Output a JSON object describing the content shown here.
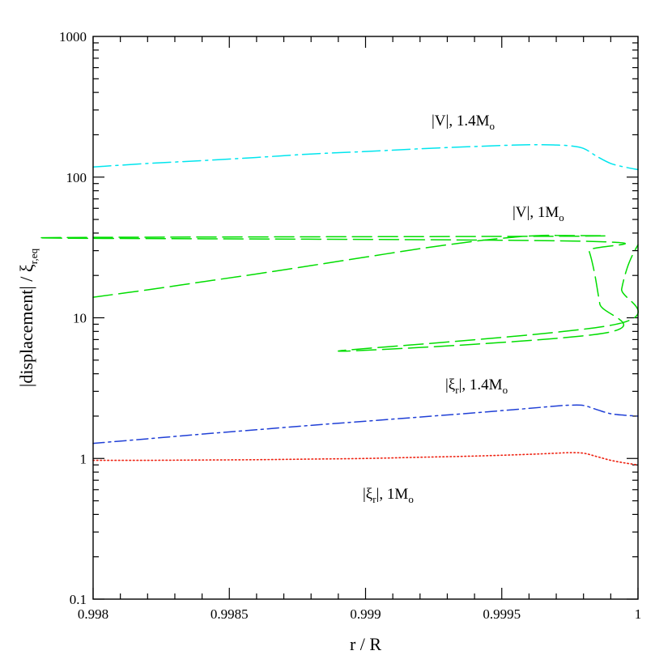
{
  "chart_data": {
    "type": "line",
    "title": "",
    "xlabel": "r / R",
    "ylabel": "|displacement| / ξ",
    "ylabel_subscript": "r,eq",
    "xlim": [
      0.998,
      1.0
    ],
    "ylim": [
      0.1,
      1000
    ],
    "yscale": "log",
    "grid": false,
    "x_ticks": [
      0.998,
      0.9985,
      0.999,
      0.9995,
      1.0
    ],
    "x_tick_labels": [
      "0.998",
      "0.9985",
      "0.999",
      "0.9995",
      "1"
    ],
    "y_ticks": [
      0.1,
      1,
      10,
      100,
      1000
    ],
    "y_tick_labels": [
      "0.1",
      "1",
      "10",
      "100",
      "1000"
    ],
    "series": [
      {
        "name": "|V|, 1.4Mo",
        "color": "#00e5ee",
        "style": "dash-dot-long",
        "x": [
          0.998,
          0.9982,
          0.9984,
          0.9986,
          0.9988,
          0.999,
          0.9992,
          0.9994,
          0.99955,
          0.99965,
          0.9997,
          0.99975,
          0.9998,
          0.99985,
          0.9999,
          0.99995,
          1.0
        ],
        "y": [
          118,
          125,
          131,
          138,
          146,
          152,
          159,
          165,
          169,
          170,
          169,
          167,
          160,
          140,
          125,
          118,
          113
        ]
      },
      {
        "name": "|V|, 1Mo",
        "color": "#00dd00",
        "style": "long-dash",
        "x": [
          0.998,
          0.9982,
          0.9984,
          0.9986,
          0.9988,
          0.999,
          0.9992,
          0.9994,
          0.99955,
          0.99965,
          0.9997,
          0.99975,
          0.9978,
          0.9998,
          0.99982,
          0.99984,
          0.99986,
          0.99988,
          0.9989,
          0.99992,
          0.99994,
          0.99996,
          0.99998,
          1.0
        ],
        "y": [
          14,
          15.8,
          18,
          20.5,
          23.5,
          27,
          31,
          35,
          37.5,
          38.5,
          38.5,
          38,
          37,
          35,
          30,
          21,
          12.5,
          7.8,
          5.8,
          9,
          16,
          22.5,
          28,
          33
        ]
      },
      {
        "name": "|ξ_r|, 1.4Mo",
        "color": "#1f3fd6",
        "style": "dash-dot",
        "x": [
          0.998,
          0.9982,
          0.9984,
          0.9986,
          0.9988,
          0.999,
          0.9992,
          0.9994,
          0.9996,
          0.9997,
          0.99975,
          0.9998,
          0.99985,
          0.9999,
          0.99995,
          1.0
        ],
        "y": [
          1.28,
          1.38,
          1.49,
          1.6,
          1.72,
          1.84,
          1.97,
          2.11,
          2.27,
          2.36,
          2.39,
          2.38,
          2.22,
          2.08,
          2.03,
          2.0
        ]
      },
      {
        "name": "|ξ_r|, 1Mo",
        "color": "#ee2211",
        "style": "dotted",
        "x": [
          0.998,
          0.9982,
          0.9984,
          0.9986,
          0.9988,
          0.999,
          0.9992,
          0.9994,
          0.9996,
          0.9997,
          0.99975,
          0.9998,
          0.99985,
          0.9999,
          0.99995,
          1.0
        ],
        "y": [
          0.97,
          0.97,
          0.975,
          0.98,
          0.99,
          1.0,
          1.02,
          1.04,
          1.07,
          1.09,
          1.1,
          1.09,
          1.03,
          0.97,
          0.93,
          0.9
        ]
      }
    ],
    "annotations": [
      {
        "name": "label-v-14",
        "text": "|V|,  1.4M",
        "subscript": "o"
      },
      {
        "name": "label-v-10",
        "text": "|V|,  1M",
        "subscript": "o"
      },
      {
        "name": "label-xi-14",
        "text_pre": "|ξ",
        "text_sub1": "r",
        "text_post": "|,  1.4M",
        "subscript": "o"
      },
      {
        "name": "label-xi-10",
        "text_pre": "|ξ",
        "text_sub1": "r",
        "text_post": "|,  1M",
        "subscript": "o"
      }
    ]
  }
}
